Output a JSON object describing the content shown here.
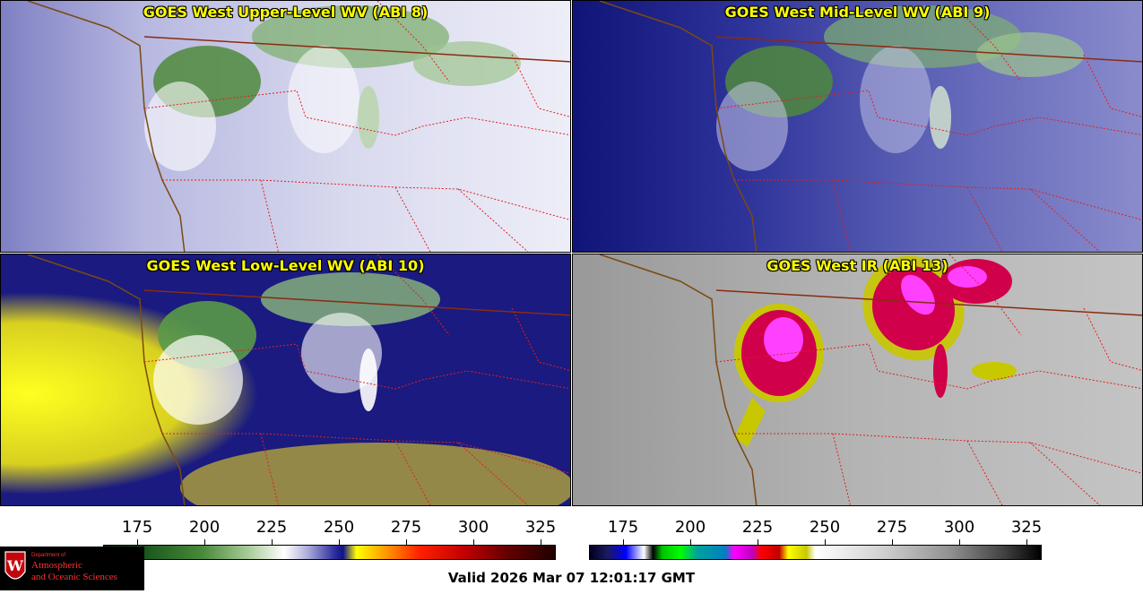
{
  "panels": [
    {
      "title": "GOES West Upper-Level WV (ABI 8)"
    },
    {
      "title": "GOES West Mid-Level WV (ABI 9)"
    },
    {
      "title": "GOES West Low-Level WV (ABI 10)"
    },
    {
      "title": "GOES West IR (ABI 13)"
    }
  ],
  "colorbars": {
    "wv": {
      "ticks": [
        "175",
        "200",
        "225",
        "250",
        "275",
        "300",
        "325"
      ]
    },
    "ir": {
      "ticks": [
        "175",
        "200",
        "225",
        "250",
        "275",
        "300",
        "325"
      ]
    }
  },
  "valid_time": "Valid 2026 Mar 07 12:01:17 GMT",
  "logo": {
    "line1": "Department of",
    "line2": "Atmospheric",
    "line3": "and Oceanic Sciences"
  }
}
